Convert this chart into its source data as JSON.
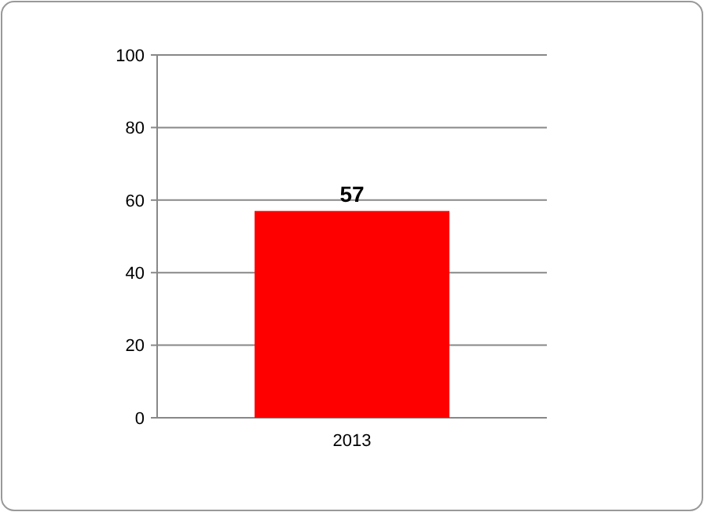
{
  "chart_data": {
    "type": "bar",
    "categories": [
      "2013"
    ],
    "values": [
      57
    ],
    "color": "#ff0000",
    "ylim": [
      0,
      100
    ],
    "yticks": [
      0,
      20,
      40,
      60,
      80,
      100
    ],
    "grid": "y",
    "data_labels": true
  }
}
